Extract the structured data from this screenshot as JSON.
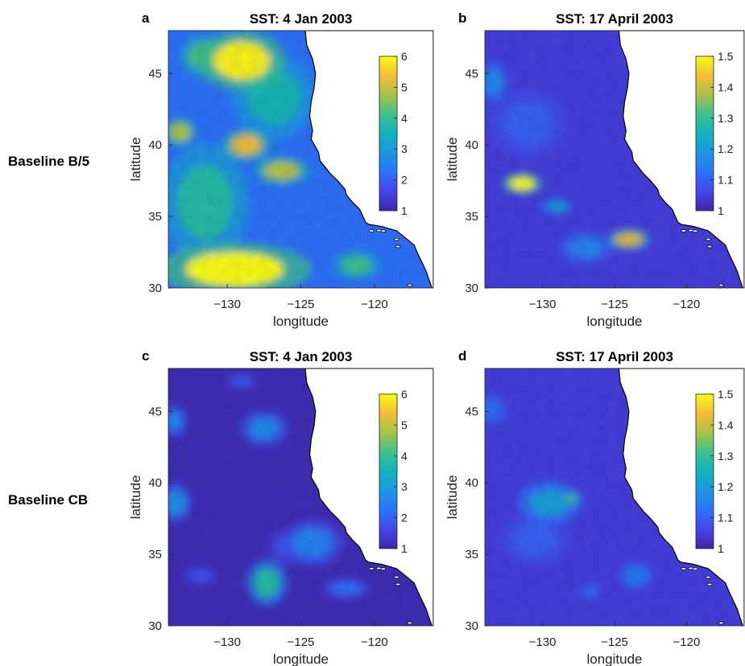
{
  "row_labels": [
    "Baseline B/5",
    "Baseline CB"
  ],
  "chart_data": [
    {
      "type": "heatmap",
      "panel_letter": "a",
      "title": "SST: 4 Jan 2003",
      "xlabel": "longitude",
      "ylabel": "latitude",
      "xlim": [
        -134,
        -116
      ],
      "ylim": [
        30,
        48
      ],
      "xticks": [
        -130,
        -125,
        -120
      ],
      "yticks": [
        30,
        35,
        40,
        45
      ],
      "colorbar": {
        "min": 1,
        "max": 6,
        "ticks": [
          1,
          2,
          3,
          4,
          5,
          6
        ]
      },
      "colormap": "parula",
      "base_level": 2.2,
      "blobs": [
        {
          "lon": -129,
          "lat": 45.9,
          "value": 5.9,
          "radius_lon": 2.4,
          "radius_lat": 1.7
        },
        {
          "lon": -131.6,
          "lat": 46.2,
          "value": 4.2,
          "radius_lon": 1.3,
          "radius_lat": 1.2
        },
        {
          "lon": -128.7,
          "lat": 40,
          "value": 5.3,
          "radius_lon": 1.3,
          "radius_lat": 0.9
        },
        {
          "lon": -126.3,
          "lat": 38.2,
          "value": 4.9,
          "radius_lon": 1.5,
          "radius_lat": 0.8
        },
        {
          "lon": -133.2,
          "lat": 40.9,
          "value": 4.8,
          "radius_lon": 0.9,
          "radius_lat": 0.8
        },
        {
          "lon": -129.5,
          "lat": 31.3,
          "value": 6,
          "radius_lon": 4.2,
          "radius_lat": 1.5
        },
        {
          "lon": -121.2,
          "lat": 31.6,
          "value": 4.1,
          "radius_lon": 1.3,
          "radius_lat": 0.8
        },
        {
          "lon": -131.5,
          "lat": 36,
          "value": 3.8,
          "radius_lon": 2.4,
          "radius_lat": 3.3
        },
        {
          "lon": -126.8,
          "lat": 43.3,
          "value": 3.6,
          "radius_lon": 2.3,
          "radius_lat": 2.4
        }
      ]
    },
    {
      "type": "heatmap",
      "panel_letter": "b",
      "title": "SST: 17 April 2003",
      "xlabel": "longitude",
      "ylabel": "latitude",
      "xlim": [
        -134,
        -116
      ],
      "ylim": [
        30,
        48
      ],
      "xticks": [
        -130,
        -125,
        -120
      ],
      "yticks": [
        30,
        35,
        40,
        45
      ],
      "colorbar": {
        "min": 1,
        "max": 1.5,
        "ticks": [
          1,
          1.1,
          1.2,
          1.3,
          1.4,
          1.5
        ]
      },
      "colormap": "parula",
      "base_level": 1.05,
      "blobs": [
        {
          "lon": -131.4,
          "lat": 37.3,
          "value": 1.5,
          "radius_lon": 1.1,
          "radius_lat": 0.6
        },
        {
          "lon": -129,
          "lat": 35.7,
          "value": 1.22,
          "radius_lon": 0.9,
          "radius_lat": 0.4
        },
        {
          "lon": -124,
          "lat": 33.4,
          "value": 1.42,
          "radius_lon": 1.2,
          "radius_lat": 0.6
        },
        {
          "lon": -133.4,
          "lat": 44.4,
          "value": 1.16,
          "radius_lon": 0.8,
          "radius_lat": 1.2
        },
        {
          "lon": -127,
          "lat": 32.8,
          "value": 1.15,
          "radius_lon": 1.5,
          "radius_lat": 0.9
        },
        {
          "lon": -131,
          "lat": 41.5,
          "value": 1.1,
          "radius_lon": 2.2,
          "radius_lat": 2
        }
      ]
    },
    {
      "type": "heatmap",
      "panel_letter": "c",
      "title": "SST: 4 Jan 2003",
      "xlabel": "longitude",
      "ylabel": "latitude",
      "xlim": [
        -134,
        -116
      ],
      "ylim": [
        30,
        48
      ],
      "xticks": [
        -130,
        -125,
        -120
      ],
      "yticks": [
        30,
        35,
        40,
        45
      ],
      "colorbar": {
        "min": 1,
        "max": 6,
        "ticks": [
          1,
          2,
          3,
          4,
          5,
          6
        ]
      },
      "colormap": "parula",
      "base_level": 1.15,
      "blobs": [
        {
          "lon": -127.3,
          "lat": 33,
          "value": 3.8,
          "radius_lon": 1.1,
          "radius_lat": 1.3
        },
        {
          "lon": -127.5,
          "lat": 43.8,
          "value": 2.6,
          "radius_lon": 1.3,
          "radius_lat": 1
        },
        {
          "lon": -133.5,
          "lat": 38.6,
          "value": 2.7,
          "radius_lon": 0.9,
          "radius_lat": 1.1
        },
        {
          "lon": -133.6,
          "lat": 44.3,
          "value": 2.5,
          "radius_lon": 0.7,
          "radius_lat": 0.9
        },
        {
          "lon": -124.2,
          "lat": 35.8,
          "value": 2.5,
          "radius_lon": 1.7,
          "radius_lat": 1.3
        },
        {
          "lon": -121.9,
          "lat": 32.6,
          "value": 2.2,
          "radius_lon": 1.3,
          "radius_lat": 0.6
        },
        {
          "lon": -129,
          "lat": 47.1,
          "value": 2,
          "radius_lon": 0.9,
          "radius_lat": 0.4
        },
        {
          "lon": -131.8,
          "lat": 33.5,
          "value": 1.9,
          "radius_lon": 0.9,
          "radius_lat": 0.5
        },
        {
          "lon": -126,
          "lat": 35.5,
          "value": 1.8,
          "radius_lon": 1,
          "radius_lat": 1
        }
      ]
    },
    {
      "type": "heatmap",
      "panel_letter": "d",
      "title": "SST: 17 April 2003",
      "xlabel": "longitude",
      "ylabel": "latitude",
      "xlim": [
        -134,
        -116
      ],
      "ylim": [
        30,
        48
      ],
      "xticks": [
        -130,
        -125,
        -120
      ],
      "yticks": [
        30,
        35,
        40,
        45
      ],
      "colorbar": {
        "min": 1,
        "max": 1.5,
        "ticks": [
          1,
          1.1,
          1.2,
          1.3,
          1.4,
          1.5
        ]
      },
      "colormap": "parula",
      "base_level": 1.05,
      "blobs": [
        {
          "lon": -129.5,
          "lat": 38.6,
          "value": 1.2,
          "radius_lon": 1.8,
          "radius_lat": 1.2
        },
        {
          "lon": -128,
          "lat": 38.9,
          "value": 1.32,
          "radius_lon": 0.5,
          "radius_lat": 0.4
        },
        {
          "lon": -123.5,
          "lat": 33.5,
          "value": 1.14,
          "radius_lon": 1,
          "radius_lat": 0.8
        },
        {
          "lon": -126.7,
          "lat": 32.4,
          "value": 1.13,
          "radius_lon": 0.6,
          "radius_lat": 0.4
        },
        {
          "lon": -133.5,
          "lat": 45.1,
          "value": 1.12,
          "radius_lon": 0.8,
          "radius_lat": 0.9
        },
        {
          "lon": -130.5,
          "lat": 36,
          "value": 1.1,
          "radius_lon": 2,
          "radius_lat": 1.5
        }
      ]
    }
  ]
}
